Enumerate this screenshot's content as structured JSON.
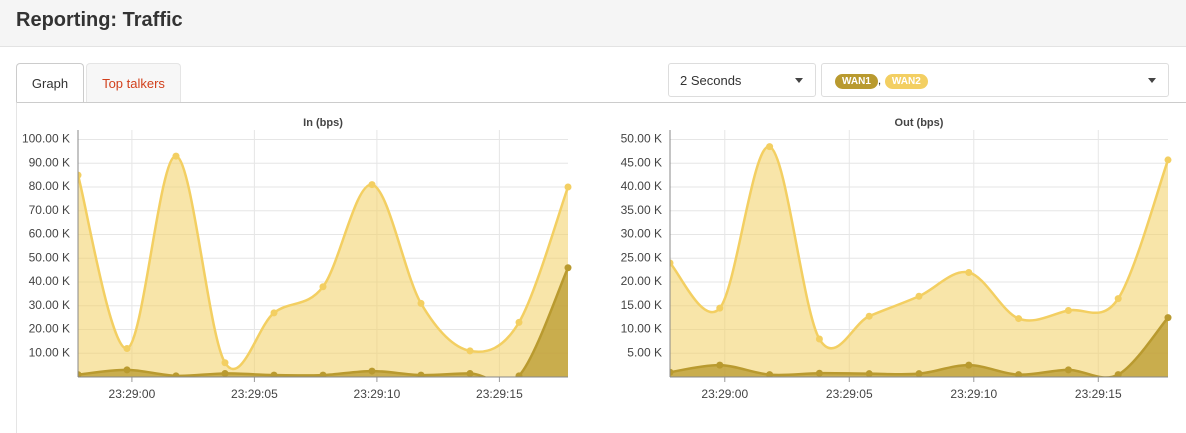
{
  "header": {
    "title": "Reporting: Traffic"
  },
  "tabs": [
    "Graph",
    "Top talkers"
  ],
  "controls": {
    "interval": "2 Seconds",
    "separator": ","
  },
  "chart_data": [
    {
      "type": "area",
      "title": "In (bps)",
      "x": [
        -2.2,
        -0.2,
        1.8,
        3.8,
        5.8,
        7.8,
        9.8,
        11.8,
        13.8,
        15.8,
        17.8
      ],
      "xlim": [
        -2.2,
        17.8
      ],
      "xticks": [
        {
          "value": 0,
          "label": "23:29:00"
        },
        {
          "value": 5,
          "label": "23:29:05"
        },
        {
          "value": 10,
          "label": "23:29:10"
        },
        {
          "value": 15,
          "label": "23:29:15"
        }
      ],
      "ylim": [
        0,
        104000
      ],
      "yticks": [
        {
          "value": 10000,
          "label": "10.00 K"
        },
        {
          "value": 20000,
          "label": "20.00 K"
        },
        {
          "value": 30000,
          "label": "30.00 K"
        },
        {
          "value": 40000,
          "label": "40.00 K"
        },
        {
          "value": 50000,
          "label": "50.00 K"
        },
        {
          "value": 60000,
          "label": "60.00 K"
        },
        {
          "value": 70000,
          "label": "70.00 K"
        },
        {
          "value": 80000,
          "label": "80.00 K"
        },
        {
          "value": 90000,
          "label": "90.00 K"
        },
        {
          "value": 100000,
          "label": "100.00 K"
        }
      ],
      "grid": true,
      "series": [
        {
          "name": "WAN1",
          "color": "#b99a2f",
          "values": [
            1000,
            3000,
            500,
            1500,
            800,
            800,
            2500,
            800,
            1500,
            500,
            46000
          ]
        },
        {
          "name": "WAN2",
          "color": "#f3cf62",
          "values": [
            85000,
            12000,
            93000,
            6000,
            27000,
            38000,
            81000,
            31000,
            11000,
            23000,
            80000
          ]
        }
      ]
    },
    {
      "type": "area",
      "title": "Out (bps)",
      "x": [
        -2.2,
        -0.2,
        1.8,
        3.8,
        5.8,
        7.8,
        9.8,
        11.8,
        13.8,
        15.8,
        17.8
      ],
      "xlim": [
        -2.2,
        17.8
      ],
      "xticks": [
        {
          "value": 0,
          "label": "23:29:00"
        },
        {
          "value": 5,
          "label": "23:29:05"
        },
        {
          "value": 10,
          "label": "23:29:10"
        },
        {
          "value": 15,
          "label": "23:29:15"
        }
      ],
      "ylim": [
        0,
        52000
      ],
      "yticks": [
        {
          "value": 5000,
          "label": "5.00 K"
        },
        {
          "value": 10000,
          "label": "10.00 K"
        },
        {
          "value": 15000,
          "label": "15.00 K"
        },
        {
          "value": 20000,
          "label": "20.00 K"
        },
        {
          "value": 25000,
          "label": "25.00 K"
        },
        {
          "value": 30000,
          "label": "30.00 K"
        },
        {
          "value": 35000,
          "label": "35.00 K"
        },
        {
          "value": 40000,
          "label": "40.00 K"
        },
        {
          "value": 45000,
          "label": "45.00 K"
        },
        {
          "value": 50000,
          "label": "50.00 K"
        }
      ],
      "grid": true,
      "series": [
        {
          "name": "WAN1",
          "color": "#b99a2f",
          "values": [
            1000,
            2500,
            500,
            800,
            700,
            700,
            2500,
            500,
            1500,
            500,
            12500
          ]
        },
        {
          "name": "WAN2",
          "color": "#f3cf62",
          "values": [
            24000,
            14500,
            48500,
            8000,
            12800,
            17000,
            22000,
            12300,
            14000,
            16500,
            45700
          ]
        }
      ]
    }
  ]
}
